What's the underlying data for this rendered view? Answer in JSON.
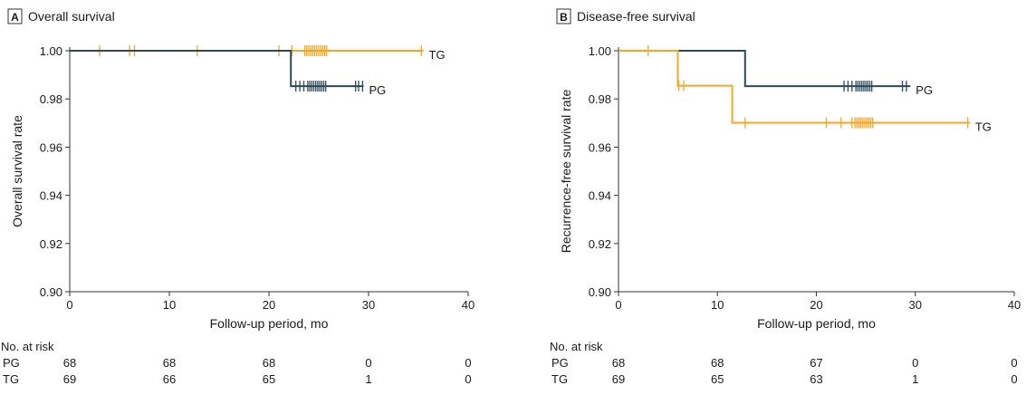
{
  "colors": {
    "pg": "#2b4a57",
    "tg": "#f5a623",
    "axis": "#333333",
    "text": "#1a1a1a"
  },
  "chart_data": [
    {
      "type": "line",
      "panel_letter": "A",
      "title": "Overall survival",
      "xlabel": "Follow-up period, mo",
      "ylabel": "Overall survival rate",
      "xlim": [
        0,
        40
      ],
      "ylim": [
        0.9,
        1.0
      ],
      "xticks": [
        0,
        10,
        20,
        30,
        40
      ],
      "xtick_labels": [
        "0",
        "10",
        "20",
        "30",
        "40"
      ],
      "yticks": [
        0.9,
        0.92,
        0.94,
        0.96,
        0.98,
        1.0
      ],
      "ytick_labels": [
        "0.90",
        "0.92",
        "0.94",
        "0.96",
        "0.98",
        "1.00"
      ],
      "series": [
        {
          "name": "TG",
          "color": "#f5a623",
          "steps": [
            [
              0,
              1.0
            ],
            [
              35.5,
              1.0
            ]
          ],
          "censor": [
            3,
            6,
            6.5,
            12.8,
            21,
            22.3,
            23.6,
            23.8,
            24.0,
            24.2,
            24.4,
            24.6,
            24.8,
            25.0,
            25.2,
            25.4,
            25.6,
            25.8,
            35.3
          ]
        },
        {
          "name": "PG",
          "color": "#2b4a57",
          "steps": [
            [
              0,
              1.0
            ],
            [
              22.2,
              1.0
            ],
            [
              22.2,
              0.9853
            ],
            [
              29.5,
              0.9853
            ]
          ],
          "censor": [
            22.7,
            23.1,
            23.5,
            23.9,
            24.1,
            24.3,
            24.5,
            24.7,
            24.9,
            25.1,
            25.3,
            25.5,
            25.7,
            28.7,
            29.0,
            29.4
          ]
        }
      ],
      "at_risk": {
        "header": "No. at risk",
        "rows": [
          {
            "label": "PG",
            "values": [
              "68",
              "68",
              "68",
              "0",
              "0"
            ]
          },
          {
            "label": "TG",
            "values": [
              "69",
              "66",
              "65",
              "1",
              "0"
            ]
          }
        ]
      }
    },
    {
      "type": "line",
      "panel_letter": "B",
      "title": "Disease-free survival",
      "xlabel": "Follow-up period, mo",
      "ylabel": "Recurrence-free survival rate",
      "xlim": [
        0,
        40
      ],
      "ylim": [
        0.9,
        1.0
      ],
      "xticks": [
        0,
        10,
        20,
        30,
        40
      ],
      "xtick_labels": [
        "0",
        "10",
        "20",
        "30",
        "40"
      ],
      "yticks": [
        0.9,
        0.92,
        0.94,
        0.96,
        0.98,
        1.0
      ],
      "ytick_labels": [
        "0.90",
        "0.92",
        "0.94",
        "0.96",
        "0.98",
        "1.00"
      ],
      "series": [
        {
          "name": "PG",
          "color": "#2b4a57",
          "steps": [
            [
              0,
              1.0
            ],
            [
              12.8,
              1.0
            ],
            [
              12.8,
              0.9853
            ],
            [
              29.5,
              0.9853
            ]
          ],
          "censor": [
            22.8,
            23.2,
            23.6,
            24.0,
            24.2,
            24.4,
            24.6,
            24.8,
            25.0,
            25.2,
            25.4,
            25.6,
            28.7,
            29.1
          ]
        },
        {
          "name": "TG",
          "color": "#f5a623",
          "steps": [
            [
              0,
              1.0
            ],
            [
              6,
              1.0
            ],
            [
              6,
              0.9855
            ],
            [
              11.5,
              0.9855
            ],
            [
              11.5,
              0.9701
            ],
            [
              35.5,
              0.9701
            ]
          ],
          "censor": [
            3,
            6.1,
            6.6,
            12.8,
            21,
            22.5,
            23.6,
            23.9,
            24.1,
            24.3,
            24.5,
            24.7,
            24.9,
            25.1,
            25.3,
            25.5,
            25.7,
            35.3
          ]
        }
      ],
      "at_risk": {
        "header": "No. at risk",
        "rows": [
          {
            "label": "PG",
            "values": [
              "68",
              "68",
              "67",
              "0",
              "0"
            ]
          },
          {
            "label": "TG",
            "values": [
              "69",
              "65",
              "63",
              "1",
              "0"
            ]
          }
        ]
      }
    }
  ]
}
